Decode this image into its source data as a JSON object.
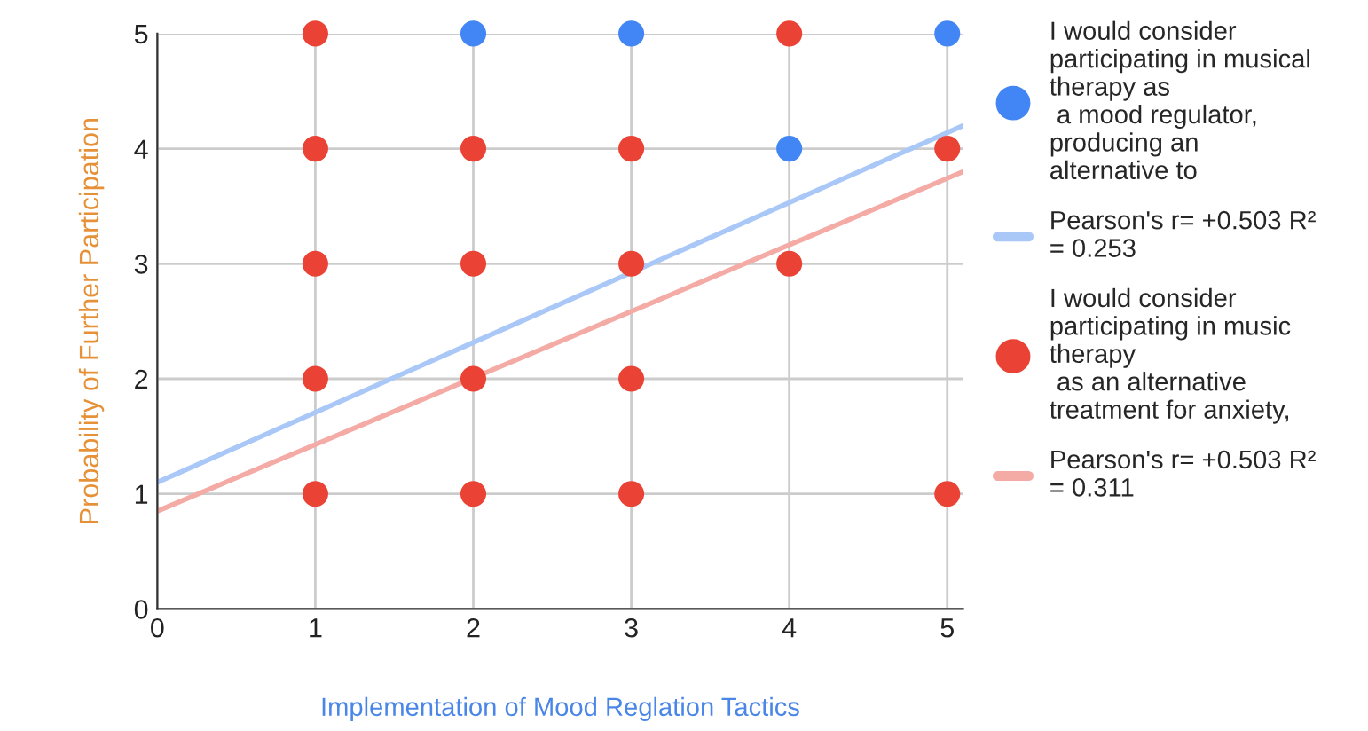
{
  "chart_data": {
    "type": "scatter",
    "xlabel": "Implementation of Mood Reglation Tactics",
    "ylabel": "Probability of Further Participation",
    "xlim": [
      0,
      5.1
    ],
    "xticks": [
      0,
      1,
      2,
      3,
      4,
      5
    ],
    "ylim": [
      0,
      5
    ],
    "yticks": [
      0,
      1,
      2,
      3,
      4,
      5
    ],
    "grid": true,
    "legend": "right",
    "marker": "circle",
    "series": [
      {
        "name": "I would consider\nparticipating in musical\ntherapy as\n a mood regulator,\nproducing an\nalternative to",
        "color": "#4285f4",
        "x": [
          2,
          3,
          4,
          5
        ],
        "values": [
          5,
          5,
          4,
          5
        ]
      },
      {
        "type": "line",
        "name": "Pearson's r= +0.503 R²\n= 0.253",
        "color": "#a9c8f8",
        "x": [
          0,
          5.1
        ],
        "values": [
          1.1,
          4.2
        ],
        "marker": "none"
      },
      {
        "name": "I would consider\nparticipating in music\ntherapy\n as an alternative\ntreatment for anxiety,",
        "color": "#ea4335",
        "x": [
          1,
          1,
          1,
          1,
          1,
          2,
          2,
          2,
          2,
          3,
          3,
          3,
          3,
          4,
          4,
          5,
          5
        ],
        "values": [
          5,
          4,
          3,
          2,
          1,
          4,
          3,
          2,
          1,
          4,
          3,
          2,
          1,
          5,
          3,
          4,
          1
        ]
      },
      {
        "type": "line",
        "name": "Pearson's r= +0.503 R²\n= 0.311",
        "color": "#f4aba5",
        "x": [
          0,
          5.1
        ],
        "values": [
          0.85,
          3.8
        ],
        "marker": "none"
      }
    ]
  }
}
